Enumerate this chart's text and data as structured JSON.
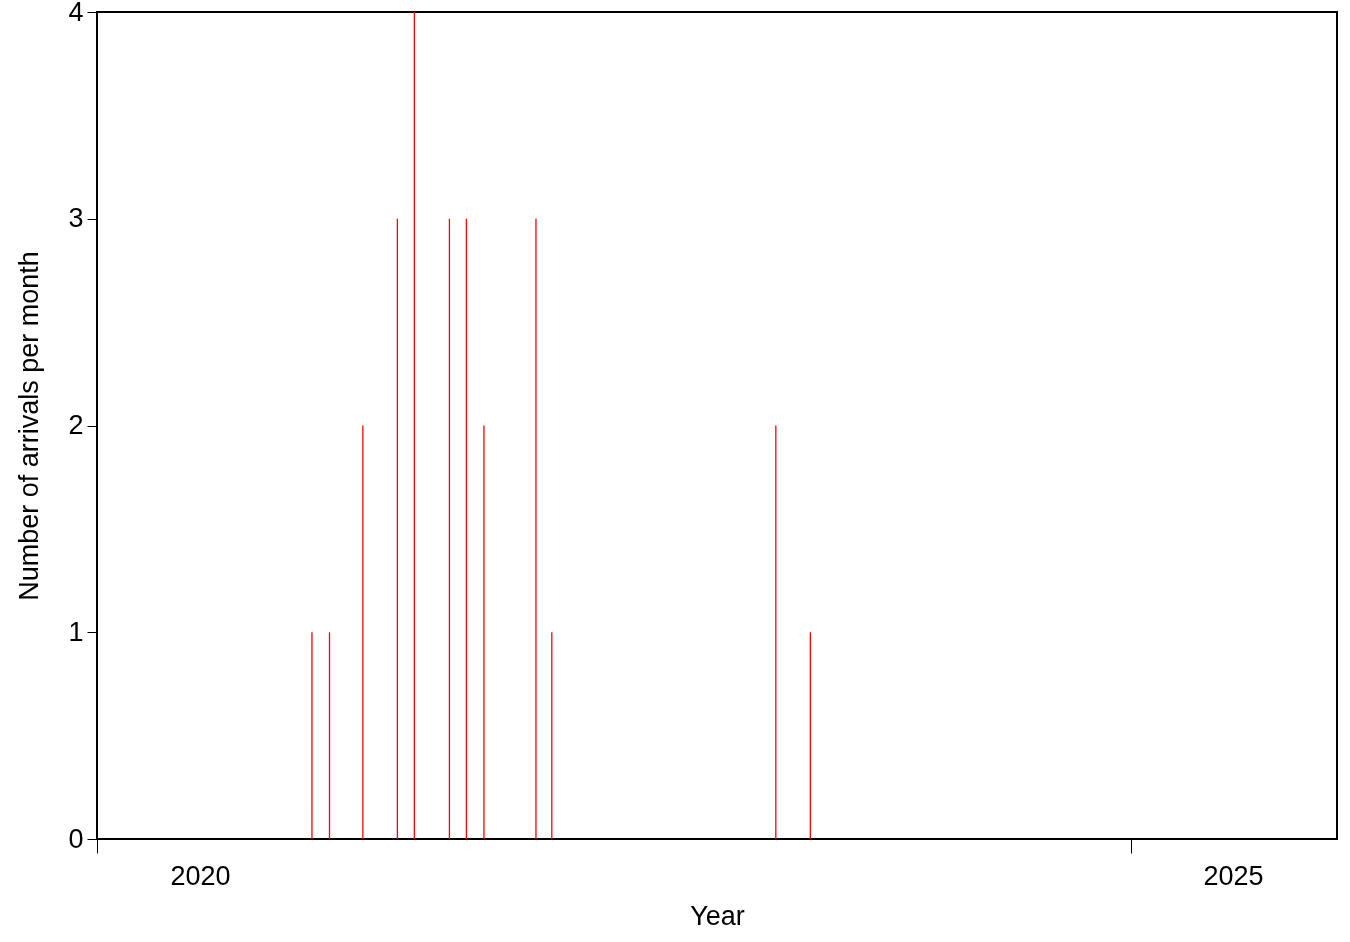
{
  "chart_data": {
    "type": "bar",
    "xlabel": "Year",
    "ylabel": "Number of arrivals per month",
    "x": [
      "2021-01-15",
      "2021-02-15",
      "2021-04-15",
      "2021-06-15",
      "2021-07-15",
      "2021-09-15",
      "2021-10-15",
      "2021-11-15",
      "2022-02-15",
      "2022-03-15",
      "2023-04-15",
      "2023-06-15"
    ],
    "series": [
      {
        "color": "#ff0000",
        "values": [
          1,
          1,
          2,
          3,
          4,
          3,
          3,
          2,
          3,
          1,
          2,
          1
        ]
      }
    ],
    "xlim": [
      "2020-01-01",
      "2026-01-01"
    ],
    "xticks": [
      {
        "value": "2020-01-01",
        "label": null
      },
      {
        "value": "2020-07-01",
        "label": "2020"
      },
      {
        "value": "2025-01-01",
        "label": null
      },
      {
        "value": "2025-07-01",
        "label": "2025"
      }
    ],
    "ylim": [
      0,
      4
    ],
    "yticks": [
      0,
      1,
      2,
      3,
      4
    ],
    "grid": false
  }
}
